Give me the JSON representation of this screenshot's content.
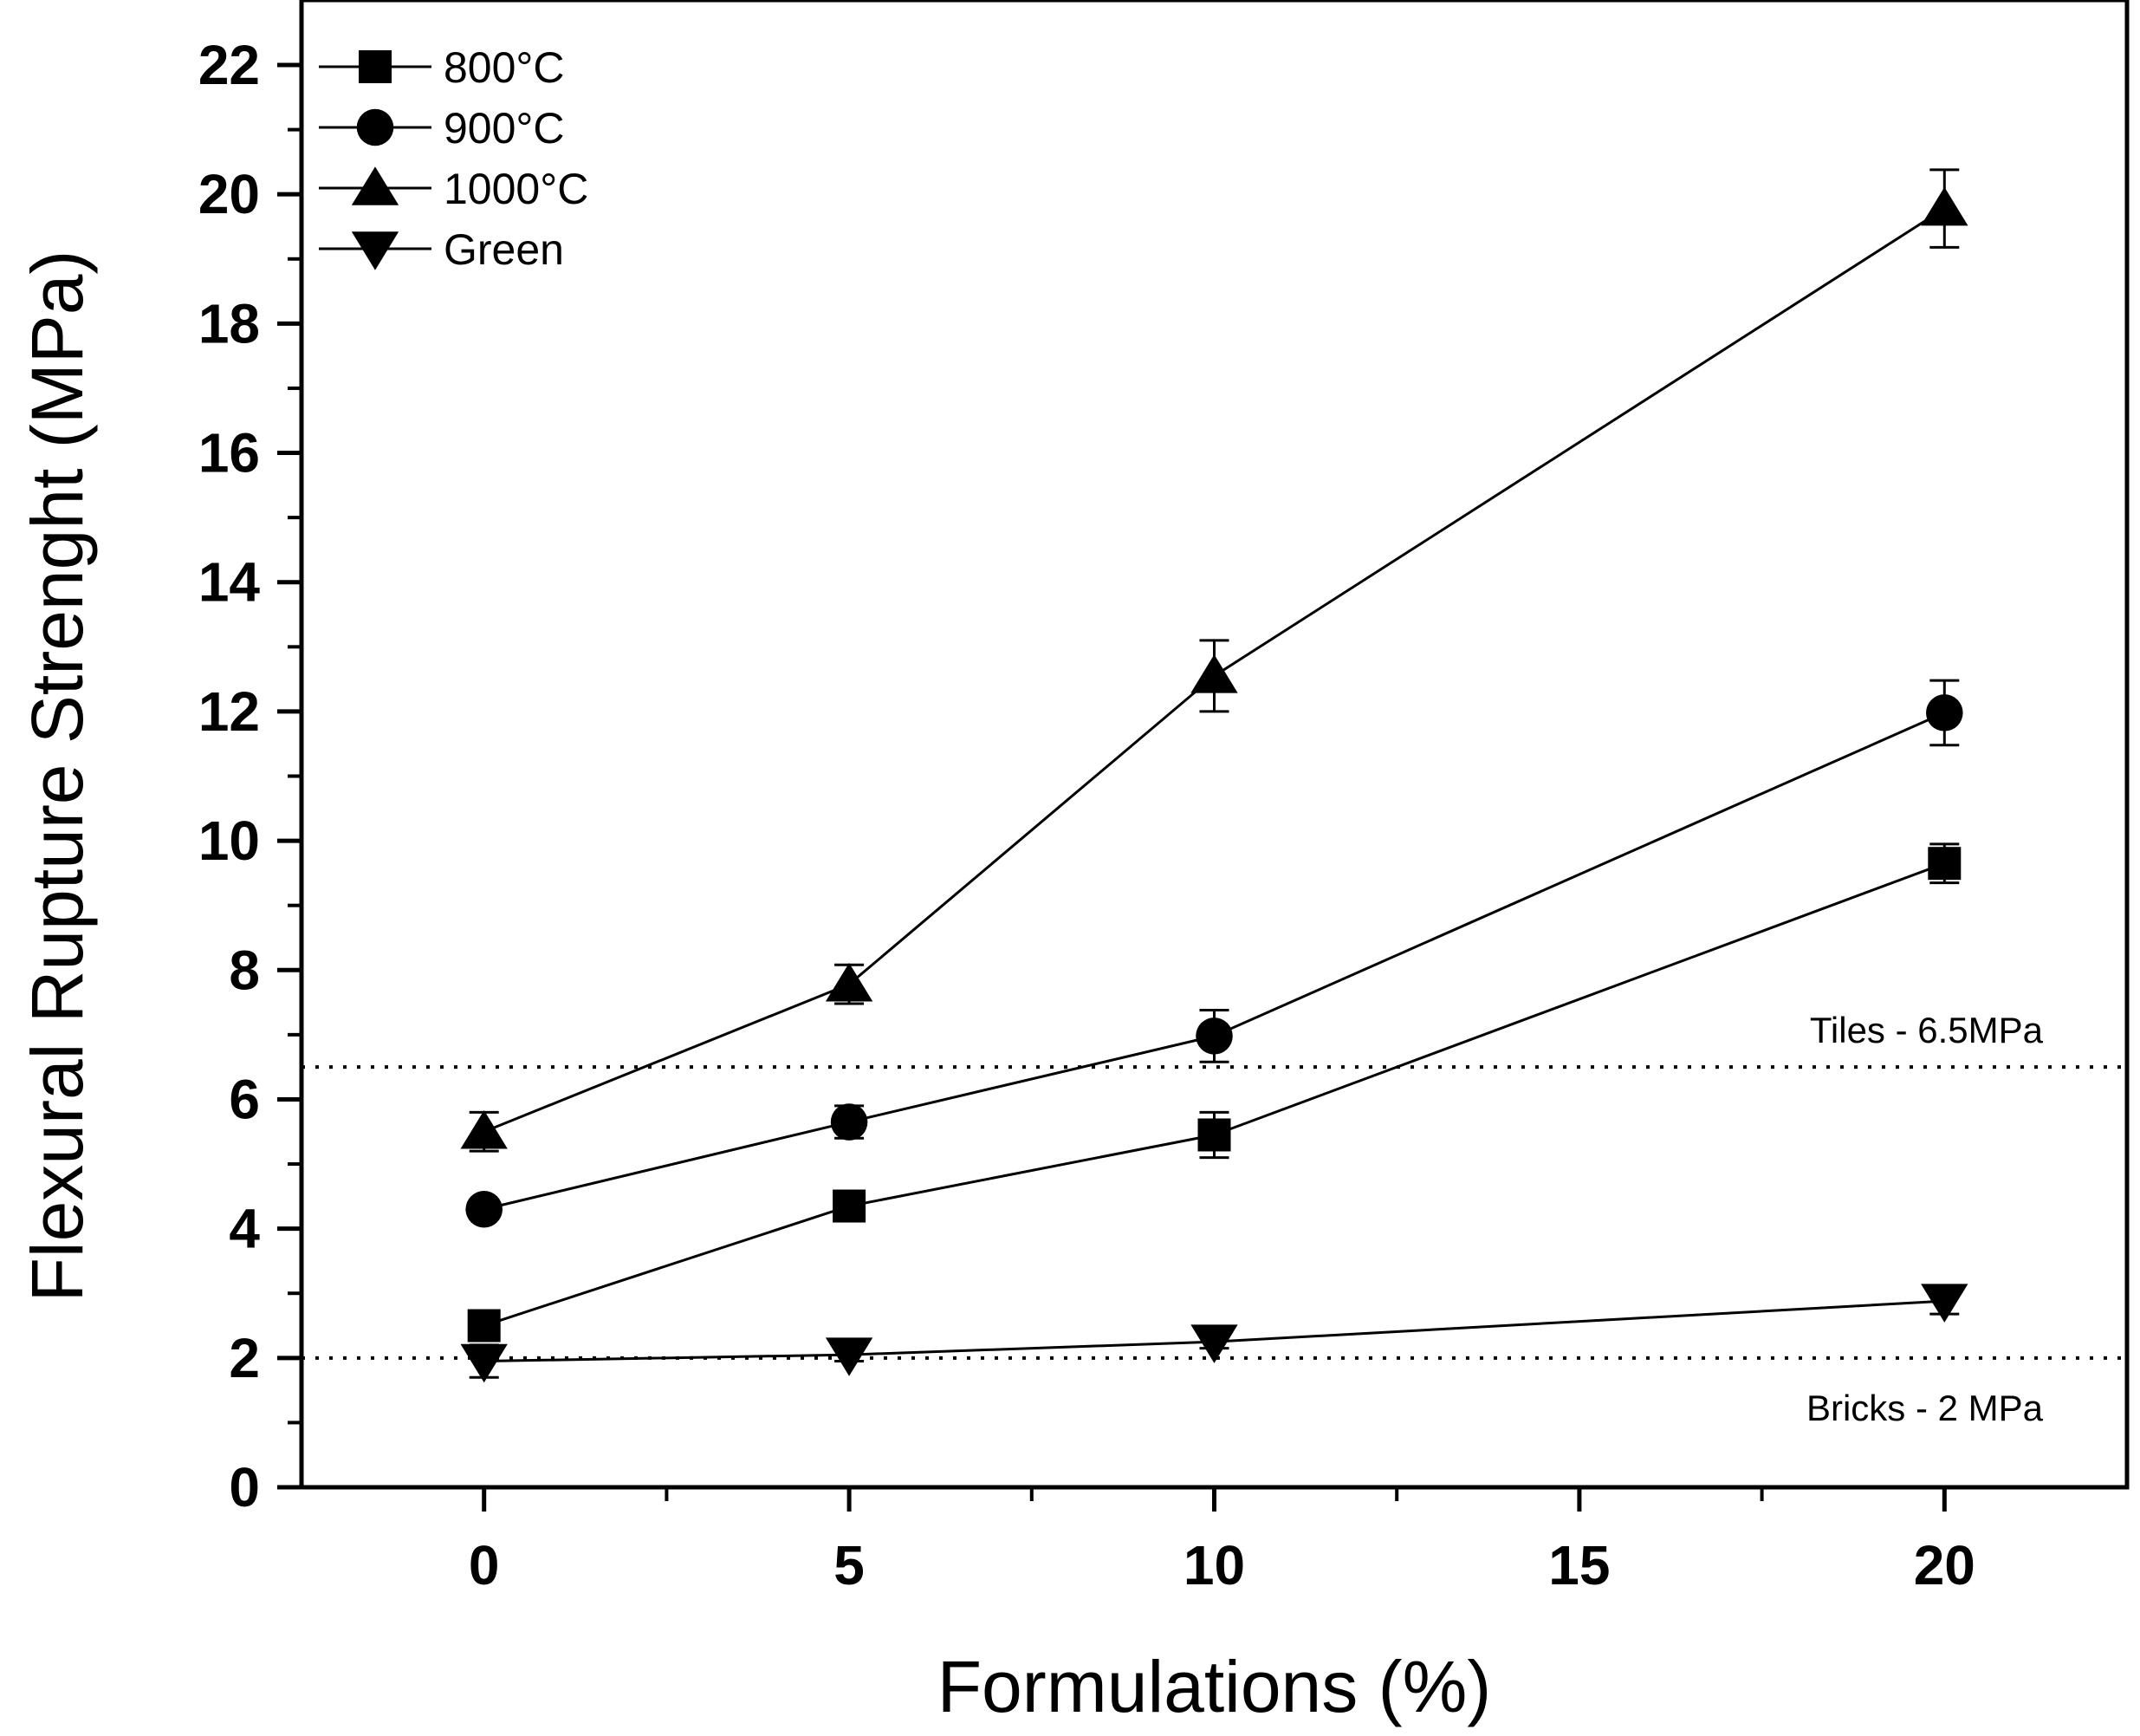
{
  "chart_data": {
    "type": "line",
    "xlabel": "Formulations (%)",
    "ylabel": "Flexural Rupture Strenght (MPa)",
    "xlim": [
      -2.5,
      22.5
    ],
    "ylim": [
      0,
      22
    ],
    "xticks": [
      0,
      5,
      10,
      15,
      20
    ],
    "yticks": [
      0,
      2,
      4,
      6,
      8,
      10,
      12,
      14,
      16,
      18,
      20,
      22
    ],
    "x": [
      0,
      5,
      10,
      20
    ],
    "series": [
      {
        "name": "800°C",
        "marker": "square",
        "values": [
          2.5,
          4.35,
          5.45,
          9.65
        ],
        "errors": [
          0.2,
          0.15,
          0.35,
          0.3
        ]
      },
      {
        "name": "900°C",
        "marker": "circle",
        "values": [
          4.3,
          5.65,
          6.98,
          11.98
        ],
        "errors": [
          0.1,
          0.25,
          0.4,
          0.5
        ]
      },
      {
        "name": "1000°C",
        "marker": "triangle-up",
        "values": [
          5.5,
          7.78,
          12.55,
          19.78
        ],
        "errors": [
          0.3,
          0.3,
          0.55,
          0.6
        ]
      },
      {
        "name": "Green",
        "marker": "triangle-down",
        "values": [
          1.95,
          2.05,
          2.25,
          2.88
        ],
        "errors": [
          0.25,
          0.1,
          0.1,
          0.2
        ]
      }
    ],
    "reference_lines": [
      {
        "label": "Tiles - 6.5MPa",
        "y": 6.5
      },
      {
        "label": "Bricks - 2 MPa",
        "y": 2
      }
    ],
    "legend_position": "top-left",
    "grid": false
  }
}
